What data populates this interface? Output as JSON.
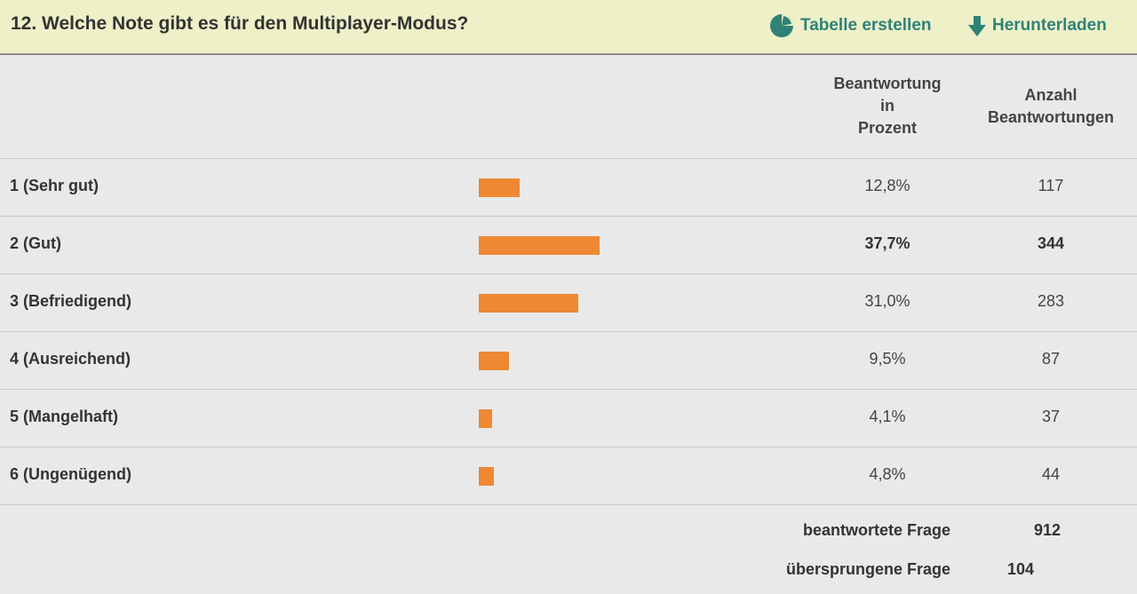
{
  "question": {
    "title": "12. Welche Note gibt es für den Multiplayer-Modus?"
  },
  "actions": {
    "create_table": {
      "label": "Tabelle erstellen",
      "icon": "pie-chart-icon"
    },
    "download": {
      "label": "Herunterladen",
      "icon": "download-arrow-icon"
    }
  },
  "table": {
    "headers": {
      "percent_lines": [
        "Beantwortung",
        "in",
        "Prozent"
      ],
      "count_lines": [
        "Anzahl",
        "Beantwortungen"
      ]
    },
    "bar_color": "#ee8833",
    "bar_max_percent": 37.7,
    "rows": [
      {
        "label": "1 (Sehr gut)",
        "percent_value": 12.8,
        "percent_text": "12,8%",
        "count": "117",
        "highlight": false
      },
      {
        "label": "2 (Gut)",
        "percent_value": 37.7,
        "percent_text": "37,7%",
        "count": "344",
        "highlight": true
      },
      {
        "label": "3 (Befriedigend)",
        "percent_value": 31.0,
        "percent_text": "31,0%",
        "count": "283",
        "highlight": false
      },
      {
        "label": "4 (Ausreichend)",
        "percent_value": 9.5,
        "percent_text": "9,5%",
        "count": "87",
        "highlight": false
      },
      {
        "label": "5 (Mangelhaft)",
        "percent_value": 4.1,
        "percent_text": "4,1%",
        "count": "37",
        "highlight": false
      },
      {
        "label": "6 (Ungenügend)",
        "percent_value": 4.8,
        "percent_text": "4,8%",
        "count": "44",
        "highlight": false
      }
    ]
  },
  "summary": {
    "answered_label": "beantwortete Frage",
    "answered_value": "912",
    "skipped_label": "übersprungene Frage",
    "skipped_value": "104"
  },
  "colors": {
    "header_bg": "#eef0c8",
    "accent": "#2f8278",
    "page_bg": "#e9e9e9"
  }
}
